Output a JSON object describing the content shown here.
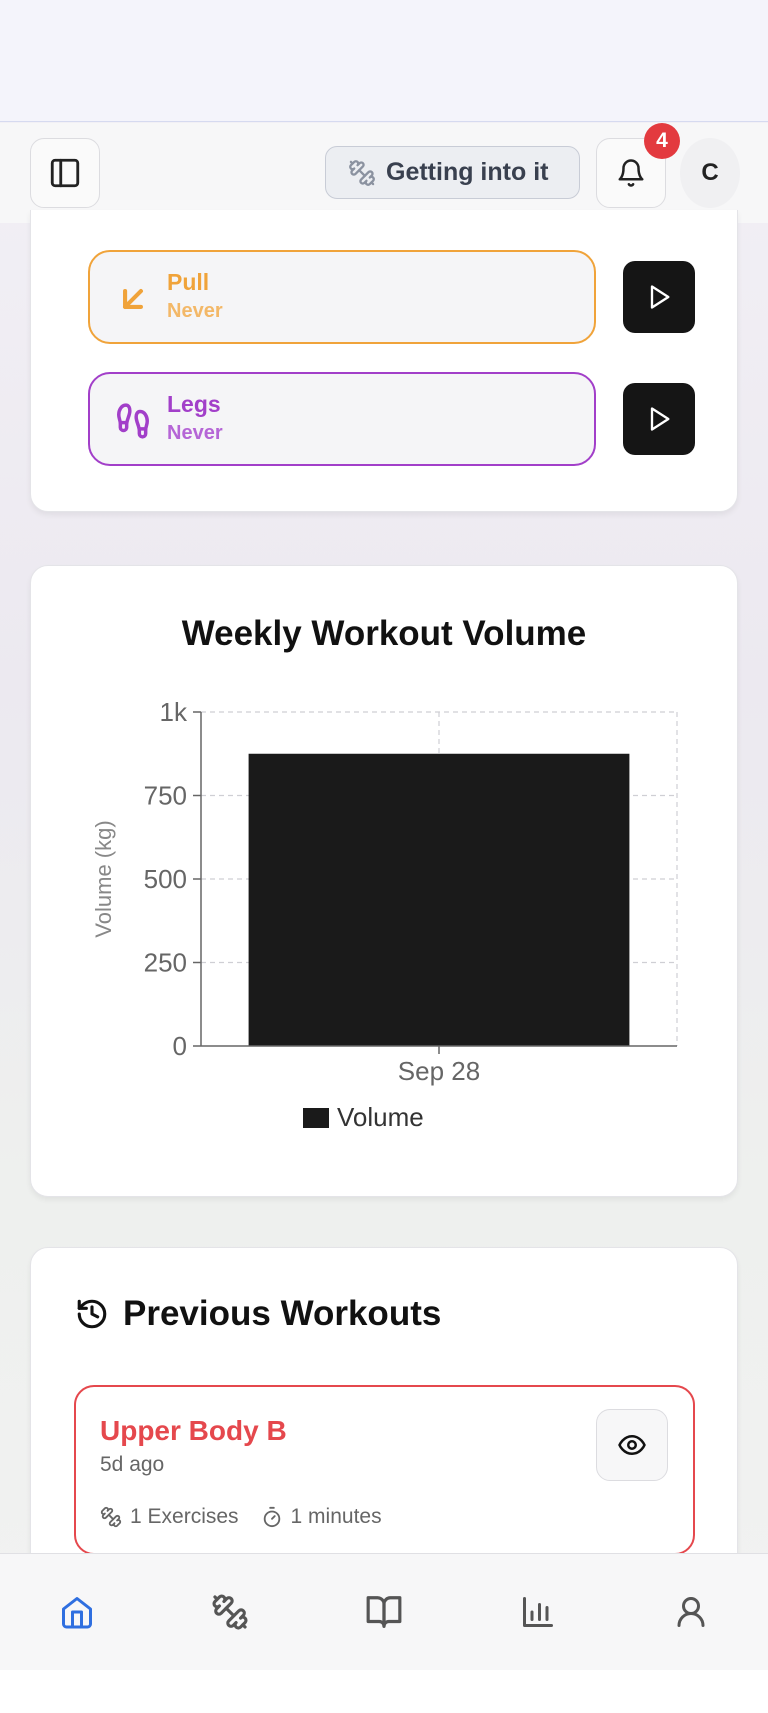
{
  "header": {
    "status_label": "Getting into it",
    "notification_count": "4",
    "avatar_initial": "C"
  },
  "routines": [
    {
      "name": "Pull",
      "last": "Never",
      "color": "#f0a33a",
      "icon": "arrow-down-left-icon"
    },
    {
      "name": "Legs",
      "last": "Never",
      "color": "#a23fc9",
      "icon": "footprints-icon"
    }
  ],
  "chart_data": {
    "type": "bar",
    "title": "Weekly Workout Volume",
    "categories": [
      "Sep 28"
    ],
    "series": [
      {
        "name": "Volume",
        "values": [
          875
        ]
      }
    ],
    "ylabel": "Volume (kg)",
    "xlabel": "",
    "ylim": [
      0,
      1000
    ],
    "yticks": [
      "0",
      "250",
      "500",
      "750",
      "1k"
    ],
    "grid": true,
    "legend": "bottom",
    "bar_color": "#1a1a1a"
  },
  "previous": {
    "title": "Previous Workouts",
    "workouts": [
      {
        "name": "Upper Body B",
        "time": "5d ago",
        "exercises": "1 Exercises",
        "duration": "1 minutes",
        "color": "#e5484d"
      }
    ]
  },
  "nav": [
    {
      "name": "home",
      "icon": "home-icon",
      "active": true
    },
    {
      "name": "workouts",
      "icon": "dumbbell-icon"
    },
    {
      "name": "library",
      "icon": "book-icon"
    },
    {
      "name": "stats",
      "icon": "bar-chart-icon"
    },
    {
      "name": "profile",
      "icon": "user-icon"
    }
  ],
  "colors": {
    "accent": "#2f6fe0",
    "muted": "#555555"
  }
}
